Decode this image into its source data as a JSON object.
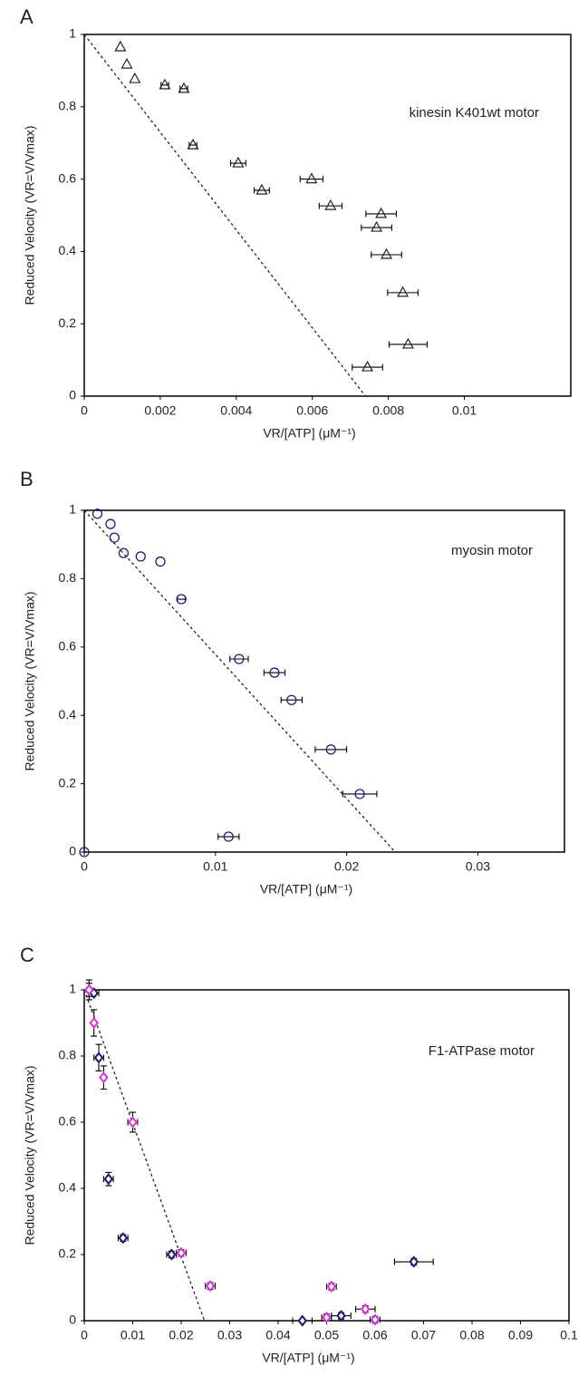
{
  "chart_data": [
    {
      "type": "scatter",
      "panel_label": "A",
      "annotation": "kinesin K401wt motor",
      "x_label": "VR/[ATP]  (μM⁻¹)",
      "y_label": "Reduced Velocity  (VR=V/Vmax)",
      "xlim": [
        0,
        0.0128
      ],
      "ylim": [
        0,
        1
      ],
      "xticks": [
        0,
        0.002,
        0.004,
        0.006,
        0.008,
        0.01
      ],
      "yticks": [
        0,
        0.2,
        0.4,
        0.6,
        0.8,
        1
      ],
      "fit_line": {
        "x": [
          0,
          0.0074
        ],
        "y": [
          1,
          0
        ],
        "color": "#222"
      },
      "series": [
        {
          "marker": "triangle",
          "color": "#222",
          "x": [
            0.00095,
            0.00112,
            0.00133,
            0.00212,
            0.00262,
            0.00286,
            0.00405,
            0.00467,
            0.00598,
            0.00648,
            0.00781,
            0.00769,
            0.00795,
            0.00838,
            0.00852,
            0.00745
          ],
          "values": [
            0.965,
            0.917,
            0.877,
            0.86,
            0.85,
            0.694,
            0.644,
            0.569,
            0.6,
            0.526,
            0.504,
            0.466,
            0.391,
            0.286,
            0.143,
            0.08
          ],
          "xerr": [
            0,
            0,
            0,
            0.0001,
            0.0001,
            0.0001,
            0.0002,
            0.0002,
            0.0003,
            0.0003,
            0.0004,
            0.0004,
            0.0004,
            0.0004,
            0.0005,
            0.0004
          ],
          "yerr": [
            0,
            0,
            0,
            0,
            0,
            0,
            0,
            0,
            0,
            0,
            0,
            0,
            0,
            0,
            0,
            0
          ]
        }
      ]
    },
    {
      "type": "scatter",
      "panel_label": "B",
      "annotation": "myosin motor",
      "x_label": "VR/[ATP]  (μM⁻¹)",
      "y_label": "Reduced Velocity  (VR=V/Vmax)",
      "xlim": [
        0,
        0.0366
      ],
      "ylim": [
        0,
        1
      ],
      "xticks": [
        0,
        0.01,
        0.02,
        0.03
      ],
      "yticks": [
        0,
        0.2,
        0.4,
        0.6,
        0.8,
        1
      ],
      "fit_line": {
        "x": [
          0,
          0.0237
        ],
        "y": [
          1,
          0
        ],
        "color": "#222"
      },
      "series": [
        {
          "marker": "circle",
          "color": "#1f1f7a",
          "x": [
            0,
            0.001,
            0.002,
            0.0023,
            0.003,
            0.0043,
            0.0058,
            0.0074,
            0.0118,
            0.0145,
            0.0158,
            0.0188,
            0.021,
            0.011
          ],
          "values": [
            0,
            0.99,
            0.96,
            0.92,
            0.875,
            0.865,
            0.85,
            0.74,
            0.565,
            0.525,
            0.445,
            0.3,
            0.17,
            0.045
          ],
          "xerr": [
            0,
            0,
            0,
            0,
            0,
            0,
            0,
            0.0003,
            0.0007,
            0.0008,
            0.0008,
            0.0012,
            0.0013,
            0.0008
          ],
          "yerr": [
            0,
            0,
            0,
            0,
            0,
            0,
            0,
            0,
            0,
            0,
            0,
            0,
            0,
            0
          ]
        }
      ]
    },
    {
      "type": "scatter",
      "panel_label": "C",
      "annotation": "F1-ATPase motor",
      "x_label": "VR/[ATP]  (μM⁻¹)",
      "y_label": "Reduced Velocity  (VR=V/Vmax)",
      "xlim": [
        0,
        0.1
      ],
      "ylim": [
        0,
        1
      ],
      "xticks": [
        0,
        0.01,
        0.02,
        0.03,
        0.04,
        0.05,
        0.06,
        0.07,
        0.08,
        0.09,
        0.1
      ],
      "yticks": [
        0,
        0.2,
        0.4,
        0.6,
        0.8,
        1
      ],
      "fit_line": {
        "x": [
          0,
          0.0248
        ],
        "y": [
          1,
          0
        ],
        "color": "#222"
      },
      "series": [
        {
          "marker": "diamond",
          "color": "#1a1a6e",
          "x": [
            0.001,
            0.002,
            0.003,
            0.005,
            0.008,
            0.018,
            0.045,
            0.053,
            0.068
          ],
          "values": [
            1.0,
            0.99,
            0.795,
            0.428,
            0.25,
            0.2,
            0.0,
            0.015,
            0.178
          ],
          "xerr": [
            0,
            0.001,
            0.001,
            0.001,
            0.001,
            0.001,
            0.002,
            0.002,
            0.004
          ],
          "yerr": [
            0.02,
            0,
            0.04,
            0.02,
            0.01,
            0.01,
            0,
            0.01,
            0.01
          ]
        },
        {
          "marker": "diamond",
          "color": "#d633d6",
          "x": [
            0.001,
            0.002,
            0.004,
            0.01,
            0.02,
            0.026,
            0.051,
            0.05,
            0.058,
            0.06
          ],
          "values": [
            1.0,
            0.9,
            0.735,
            0.6,
            0.205,
            0.105,
            0.103,
            0.01,
            0.035,
            0.003
          ],
          "xerr": [
            0,
            0,
            0,
            0.001,
            0.001,
            0.001,
            0.001,
            0.001,
            0.002,
            0.001
          ],
          "yerr": [
            0.03,
            0.04,
            0.035,
            0.03,
            0.01,
            0.01,
            0.01,
            0.01,
            0.01,
            0.01
          ]
        }
      ]
    }
  ]
}
